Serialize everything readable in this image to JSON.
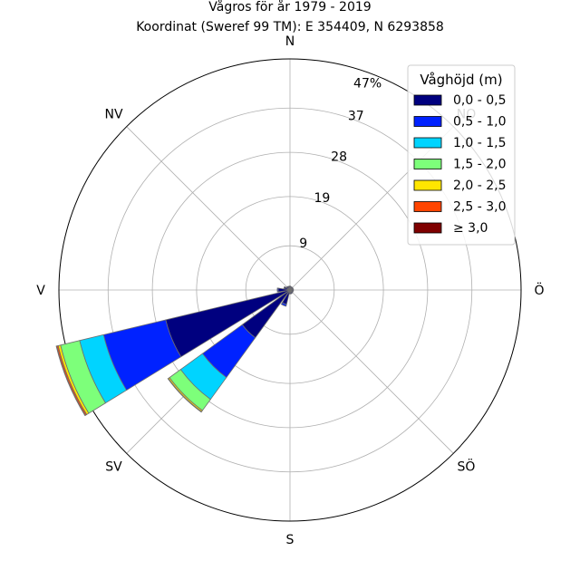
{
  "chart_data": {
    "type": "windrose",
    "title": "Vågros för år 1979 - 2019",
    "subtitle": "Koordinat (Sweref 99 TM): E 354409, N 6293858",
    "direction_labels": [
      "N",
      "NO",
      "Ö",
      "SÖ",
      "S",
      "SV",
      "V",
      "NV"
    ],
    "radial_ticks": [
      "9",
      "19",
      "28",
      "37"
    ],
    "radial_tick_values": [
      9,
      19,
      28,
      37
    ],
    "radial_max": 47,
    "radial_max_label": "47%",
    "grid": true,
    "legend": {
      "title": "Våghöjd (m)",
      "placement": "top-right",
      "entries": [
        {
          "label": "0,0 - 0,5",
          "color": "#00007f"
        },
        {
          "label": "0,5 - 1,0",
          "color": "#0022ff"
        },
        {
          "label": "1,0 - 1,5",
          "color": "#00d4ff"
        },
        {
          "label": "1,5 - 2,0",
          "color": "#7dff7a"
        },
        {
          "label": "2,0 - 2,5",
          "color": "#ffe600"
        },
        {
          "label": "2,5 - 3,0",
          "color": "#ff4500"
        },
        {
          "label": "≥ 3,0",
          "color": "#7f0000"
        }
      ]
    },
    "bins": [
      "0,0 - 0,5",
      "0,5 - 1,0",
      "1,0 - 1,5",
      "1,5 - 2,0",
      "2,0 - 2,5",
      "2,5 - 3,0",
      "≥ 3,0"
    ],
    "sectors": [
      {
        "direction_deg": 247.5,
        "values": [
          26.0,
          13.0,
          5.0,
          4.0,
          0.5,
          0.3,
          0.1
        ]
      },
      {
        "direction_deg": 225.0,
        "values": [
          12.0,
          10.0,
          5.5,
          2.8,
          0.3,
          0.1,
          0.0
        ]
      },
      {
        "direction_deg": 270.0,
        "values": [
          2.4,
          0.2,
          0.0,
          0.0,
          0.0,
          0.0,
          0.0
        ]
      },
      {
        "direction_deg": 202.5,
        "values": [
          3.0,
          0.4,
          0.0,
          0.0,
          0.0,
          0.0,
          0.0
        ]
      },
      {
        "direction_deg": 292.5,
        "values": [
          1.2,
          0.1,
          0.0,
          0.0,
          0.0,
          0.0,
          0.0
        ]
      },
      {
        "direction_deg": 315.0,
        "values": [
          0.9,
          0.0,
          0.0,
          0.0,
          0.0,
          0.0,
          0.0
        ]
      },
      {
        "direction_deg": 337.5,
        "values": [
          0.8,
          0.0,
          0.0,
          0.0,
          0.0,
          0.0,
          0.0
        ]
      },
      {
        "direction_deg": 0.0,
        "values": [
          0.8,
          0.0,
          0.0,
          0.0,
          0.0,
          0.0,
          0.0
        ]
      },
      {
        "direction_deg": 22.5,
        "values": [
          0.7,
          0.0,
          0.0,
          0.0,
          0.0,
          0.0,
          0.0
        ]
      },
      {
        "direction_deg": 45.0,
        "values": [
          0.7,
          0.0,
          0.0,
          0.0,
          0.0,
          0.0,
          0.0
        ]
      },
      {
        "direction_deg": 67.5,
        "values": [
          0.7,
          0.0,
          0.0,
          0.0,
          0.0,
          0.0,
          0.0
        ]
      },
      {
        "direction_deg": 90.0,
        "values": [
          0.7,
          0.0,
          0.0,
          0.0,
          0.0,
          0.0,
          0.0
        ]
      },
      {
        "direction_deg": 112.5,
        "values": [
          0.7,
          0.0,
          0.0,
          0.0,
          0.0,
          0.0,
          0.0
        ]
      },
      {
        "direction_deg": 135.0,
        "values": [
          0.7,
          0.0,
          0.0,
          0.0,
          0.0,
          0.0,
          0.0
        ]
      },
      {
        "direction_deg": 157.5,
        "values": [
          0.8,
          0.0,
          0.0,
          0.0,
          0.0,
          0.0,
          0.0
        ]
      },
      {
        "direction_deg": 180.0,
        "values": [
          0.8,
          0.0,
          0.0,
          0.0,
          0.0,
          0.0,
          0.0
        ]
      }
    ]
  }
}
